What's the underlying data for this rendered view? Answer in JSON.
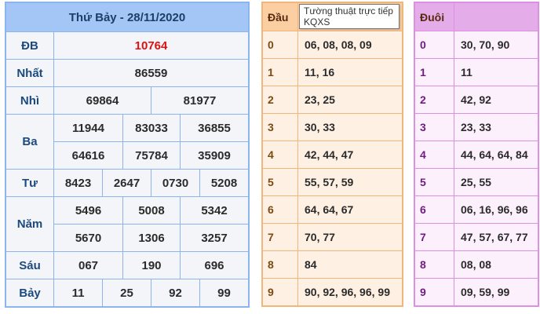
{
  "results": {
    "title": "Thứ Bảy - 28/11/2020",
    "prizes": [
      {
        "label": "ĐB",
        "rows": [
          [
            "10764"
          ]
        ]
      },
      {
        "label": "Nhất",
        "rows": [
          [
            "86559"
          ]
        ]
      },
      {
        "label": "Nhì",
        "rows": [
          [
            "69864",
            "81977"
          ]
        ]
      },
      {
        "label": "Ba",
        "rows": [
          [
            "11944",
            "83033",
            "36855"
          ],
          [
            "64616",
            "75784",
            "35909"
          ]
        ]
      },
      {
        "label": "Tư",
        "rows": [
          [
            "8423",
            "2647",
            "0730",
            "5208"
          ]
        ]
      },
      {
        "label": "Năm",
        "rows": [
          [
            "5496",
            "5008",
            "5342"
          ],
          [
            "5670",
            "1306",
            "3257"
          ]
        ]
      },
      {
        "label": "Sáu",
        "rows": [
          [
            "067",
            "190",
            "696"
          ]
        ]
      },
      {
        "label": "Bảy",
        "rows": [
          [
            "11",
            "25",
            "92",
            "99"
          ]
        ]
      }
    ],
    "special_color": "#e01010"
  },
  "dau": {
    "header": "Đầu",
    "rows": [
      {
        "k": "0",
        "v": "06, 08, 08, 09"
      },
      {
        "k": "1",
        "v": "11, 16"
      },
      {
        "k": "2",
        "v": "23, 25"
      },
      {
        "k": "3",
        "v": "30, 33"
      },
      {
        "k": "4",
        "v": "42, 44, 47"
      },
      {
        "k": "5",
        "v": "55, 57, 59"
      },
      {
        "k": "6",
        "v": "64, 64, 67"
      },
      {
        "k": "7",
        "v": "70, 77"
      },
      {
        "k": "8",
        "v": "84"
      },
      {
        "k": "9",
        "v": "90, 92, 96, 96, 99"
      }
    ]
  },
  "duoi": {
    "header": "Đuôi",
    "rows": [
      {
        "k": "0",
        "v": "30, 70, 90"
      },
      {
        "k": "1",
        "v": "11"
      },
      {
        "k": "2",
        "v": "42, 92"
      },
      {
        "k": "3",
        "v": "23, 33"
      },
      {
        "k": "4",
        "v": "44, 64, 64, 84"
      },
      {
        "k": "5",
        "v": "25, 55"
      },
      {
        "k": "6",
        "v": "06, 16, 96, 96"
      },
      {
        "k": "7",
        "v": "47, 57, 67, 77"
      },
      {
        "k": "8",
        "v": "08, 08"
      },
      {
        "k": "9",
        "v": "09, 59, 99"
      }
    ]
  },
  "tooltip": "Tường thuật trực tiếp KQXS"
}
